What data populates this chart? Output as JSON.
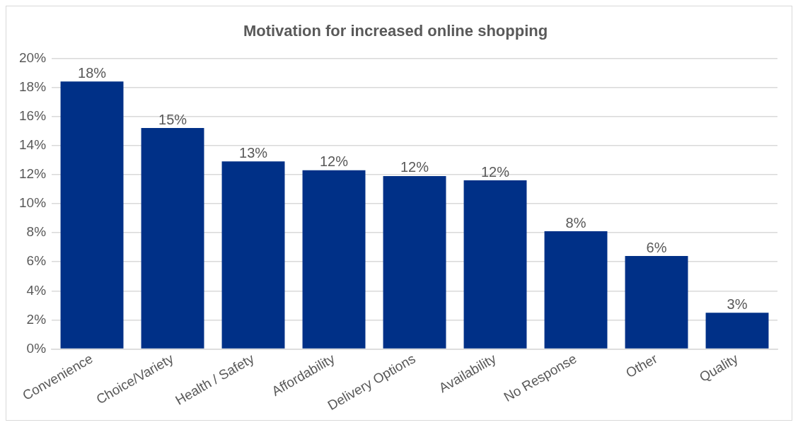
{
  "chart_data": {
    "type": "bar",
    "title": "Motivation for increased online shopping",
    "categories": [
      "Convenience",
      "Choice/Variety",
      "Health / Safety",
      "Affordability",
      "Delivery Options",
      "Availability",
      "No Response",
      "Other",
      "Quality"
    ],
    "values": [
      18.4,
      15.2,
      12.9,
      12.3,
      11.9,
      11.6,
      8.1,
      6.4,
      2.5
    ],
    "value_labels": [
      "18%",
      "15%",
      "13%",
      "12%",
      "12%",
      "12%",
      "8%",
      "6%",
      "3%"
    ],
    "color": "#003087",
    "ylim": [
      0,
      20
    ],
    "yticks": [
      {
        "value": 0,
        "label": "0%"
      },
      {
        "value": 2,
        "label": "2%"
      },
      {
        "value": 4,
        "label": "4%"
      },
      {
        "value": 6,
        "label": "6%"
      },
      {
        "value": 8,
        "label": "8%"
      },
      {
        "value": 10,
        "label": "10%"
      },
      {
        "value": 12,
        "label": "12%"
      },
      {
        "value": 14,
        "label": "14%"
      },
      {
        "value": 16,
        "label": "16%"
      },
      {
        "value": 18,
        "label": "18%"
      },
      {
        "value": 20,
        "label": "20%"
      }
    ],
    "grid": "y",
    "legend": false
  }
}
